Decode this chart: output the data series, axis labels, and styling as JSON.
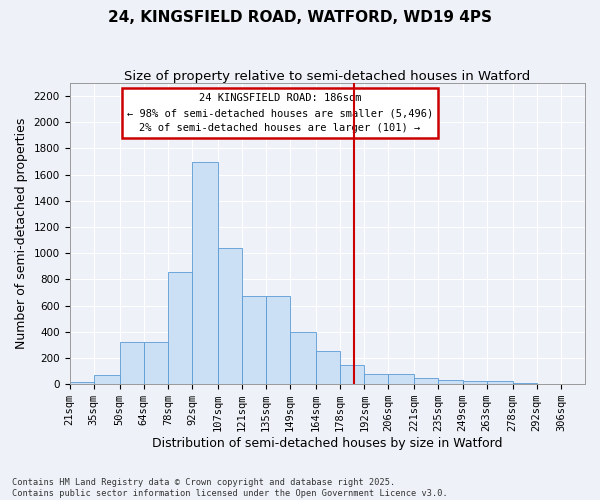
{
  "title": "24, KINGSFIELD ROAD, WATFORD, WD19 4PS",
  "subtitle": "Size of property relative to semi-detached houses in Watford",
  "xlabel": "Distribution of semi-detached houses by size in Watford",
  "ylabel": "Number of semi-detached properties",
  "bar_color": "#cce0f5",
  "bar_edge_color": "#5b9bd5",
  "background_color": "#eef2f8",
  "grid_color": "#ffffff",
  "vline_x": 186,
  "vline_color": "#cc0000",
  "annotation_title": "24 KINGSFIELD ROAD: 186sqm",
  "annotation_line1": "← 98% of semi-detached houses are smaller (5,496)",
  "annotation_line2": "2% of semi-detached houses are larger (101) →",
  "annotation_box_color": "#cc0000",
  "bins": [
    21,
    35,
    50,
    64,
    78,
    92,
    107,
    121,
    135,
    149,
    164,
    178,
    192,
    206,
    221,
    235,
    249,
    263,
    278,
    292,
    306
  ],
  "bin_labels": [
    "21sqm",
    "35sqm",
    "50sqm",
    "64sqm",
    "78sqm",
    "92sqm",
    "107sqm",
    "121sqm",
    "135sqm",
    "149sqm",
    "164sqm",
    "178sqm",
    "192sqm",
    "206sqm",
    "221sqm",
    "235sqm",
    "249sqm",
    "263sqm",
    "278sqm",
    "292sqm",
    "306sqm"
  ],
  "counts": [
    20,
    70,
    320,
    320,
    860,
    1700,
    1040,
    670,
    670,
    400,
    250,
    145,
    80,
    80,
    45,
    35,
    25,
    25,
    10,
    5,
    3
  ],
  "ylim": [
    0,
    2300
  ],
  "yticks": [
    0,
    200,
    400,
    600,
    800,
    1000,
    1200,
    1400,
    1600,
    1800,
    2000,
    2200
  ],
  "footnote1": "Contains HM Land Registry data © Crown copyright and database right 2025.",
  "footnote2": "Contains public sector information licensed under the Open Government Licence v3.0.",
  "title_fontsize": 11,
  "subtitle_fontsize": 9.5,
  "axis_label_fontsize": 9,
  "tick_fontsize": 7.5,
  "annot_fontsize": 7.5
}
